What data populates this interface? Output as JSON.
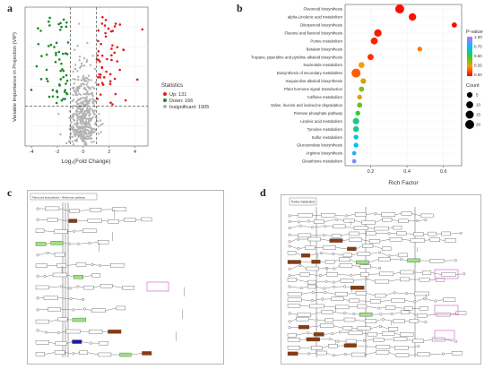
{
  "panels": {
    "a": {
      "label": "a"
    },
    "b": {
      "label": "b"
    },
    "c": {
      "label": "c"
    },
    "d": {
      "label": "d"
    }
  },
  "chart_data": [
    {
      "type": "scatter",
      "panel": "a",
      "title": "",
      "xlabel": "Log₂(Fold Change)",
      "ylabel": "Variable Importance in Projection (VIP)",
      "xticks": [
        "-4",
        "-2",
        "0",
        "2",
        "4"
      ],
      "xlim": [
        -4.5,
        5.0
      ],
      "ylim": [
        0,
        3.5
      ],
      "threshold_lines": {
        "x": [
          -1,
          1
        ],
        "y": 1
      },
      "legend": {
        "title": "Statistics",
        "placement": "right",
        "entries": [
          {
            "label": "Up: 131",
            "color": "#e41a1c"
          },
          {
            "label": "Down: 166",
            "color": "#1a8a2a"
          },
          {
            "label": "Insignificant: 1905",
            "color": "#b3b3b3"
          }
        ]
      }
    },
    {
      "type": "scatter",
      "panel": "b",
      "title": "",
      "xlabel": "Rich Factor",
      "ylabel": "",
      "xticks": [
        0.2,
        0.4,
        0.6
      ],
      "xlim": [
        0.06,
        0.7
      ],
      "categories": [
        "Flavonoid biosynthesis",
        "alpha-Linolenic acid metabolism",
        "Diterpenoid biosynthesis",
        "Flavone and flavonol biosynthesis",
        "Purine metabolism",
        "Betalain biosynthesis",
        "Tropane, piperidine and pyridine alkaloid biosynthesis",
        "Nucleotide metabolism",
        "Biosynthesis of secondary metabolites",
        "Isoquinoline alkaloid biosynthesis",
        "Plant hormone signal transduction",
        "Caffeine metabolism",
        "Valine, leucine and isoleucine degradation",
        "Pentose phosphate pathway",
        "Linoleic acid metabolism",
        "Tyrosine metabolism",
        "Sulfur metabolism",
        "Glucosinolate biosynthesis",
        "Arginine biosynthesis",
        "Glutathione metabolism"
      ],
      "rich_factor": [
        0.36,
        0.43,
        0.66,
        0.24,
        0.22,
        0.47,
        0.2,
        0.15,
        0.12,
        0.16,
        0.15,
        0.14,
        0.14,
        0.13,
        0.12,
        0.12,
        0.12,
        0.12,
        0.11,
        0.11
      ],
      "p_value": [
        0.02,
        0.03,
        0.02,
        0.04,
        0.05,
        0.2,
        0.08,
        0.25,
        0.15,
        0.3,
        0.4,
        0.3,
        0.45,
        0.5,
        0.6,
        0.62,
        0.7,
        0.75,
        0.8,
        0.9
      ],
      "count": [
        20,
        12,
        4,
        12,
        10,
        3,
        7,
        6,
        20,
        5,
        4,
        3,
        4,
        3,
        8,
        6,
        3,
        3,
        2,
        2
      ],
      "legend": {
        "color": {
          "title": "P-value",
          "ticks": [
            "1.00",
            "0.75",
            "0.50",
            "0.25",
            "0.00"
          ],
          "colors": [
            "#cc66ff",
            "#00bfff",
            "#33cc33",
            "#ff9900",
            "#ff0000"
          ],
          "placement": "right"
        },
        "size": {
          "title": "Count",
          "ticks": [
            "5",
            "10",
            "15",
            "20"
          ],
          "placement": "right"
        }
      }
    }
  ],
  "pathway_maps": {
    "c": {
      "title": "Flavonoid biosynthesis - Reference pathway"
    },
    "d": {
      "title": "Purine metabolism"
    }
  }
}
